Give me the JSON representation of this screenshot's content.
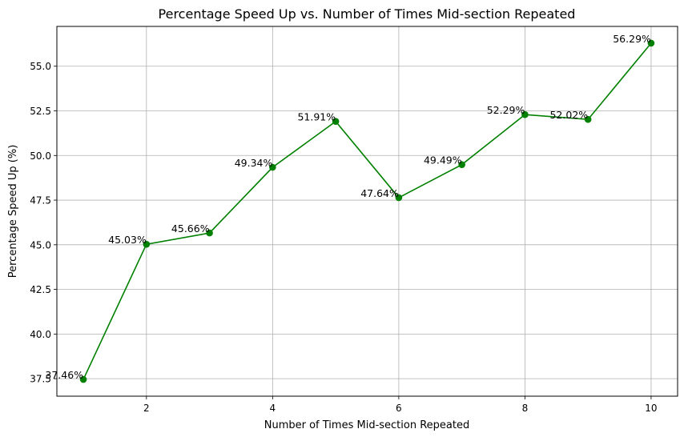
{
  "chart_data": {
    "type": "line",
    "title": "Percentage Speed Up vs. Number of Times Mid-section Repeated",
    "xlabel": "Number of Times Mid-section Repeated",
    "ylabel": "Percentage Speed Up (%)",
    "x": [
      1,
      2,
      3,
      4,
      5,
      6,
      7,
      8,
      9,
      10
    ],
    "xlim": [
      0.58,
      10.42
    ],
    "ylim": [
      36.52,
      57.23
    ],
    "xticks": [
      2,
      4,
      6,
      8,
      10
    ],
    "yticks": [
      37.5,
      40.0,
      42.5,
      45.0,
      47.5,
      50.0,
      52.5,
      55.0
    ],
    "grid": true,
    "series": [
      {
        "color": "#008000",
        "marker": "circle",
        "values": [
          37.46,
          45.03,
          45.66,
          49.34,
          51.91,
          47.64,
          49.49,
          52.29,
          52.02,
          56.29
        ],
        "labels": [
          "37.46%",
          "45.03%",
          "45.66%",
          "49.34%",
          "51.91%",
          "47.64%",
          "49.49%",
          "52.29%",
          "52.02%",
          "56.29%"
        ]
      }
    ]
  }
}
